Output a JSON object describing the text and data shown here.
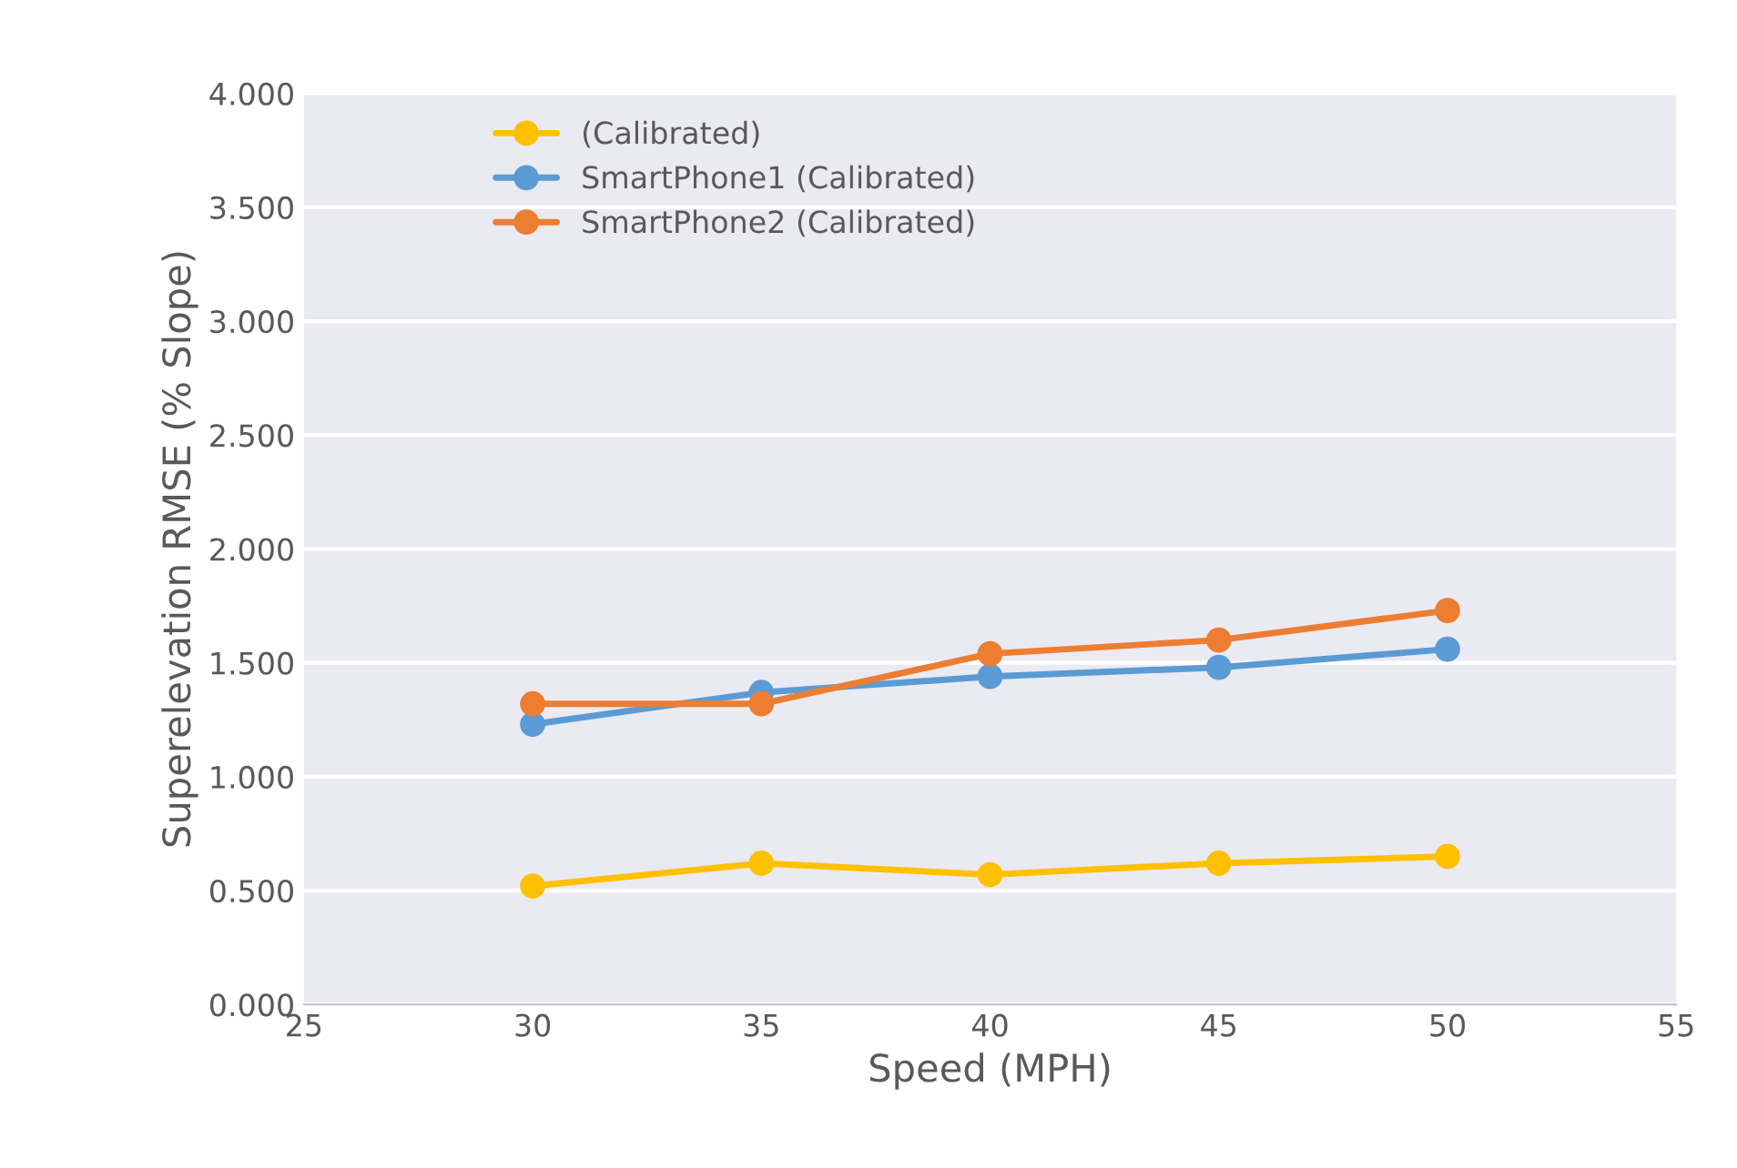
{
  "chart_data": {
    "type": "line",
    "xlabel": "Speed (MPH)",
    "ylabel": "Superelevation RMSE (% Slope)",
    "x": [
      30,
      35,
      40,
      45,
      50
    ],
    "series": [
      {
        "name": "(Calibrated)",
        "color": "#ffc000",
        "values": [
          0.52,
          0.62,
          0.57,
          0.62,
          0.65
        ]
      },
      {
        "name": "SmartPhone1 (Calibrated)",
        "color": "#5b9bd5",
        "values": [
          1.23,
          1.37,
          1.44,
          1.48,
          1.56
        ]
      },
      {
        "name": "SmartPhone2 (Calibrated)",
        "color": "#ed7d31",
        "values": [
          1.32,
          1.32,
          1.54,
          1.6,
          1.73
        ]
      }
    ],
    "xlim": [
      25,
      55
    ],
    "xticks": [
      25,
      30,
      35,
      40,
      45,
      50,
      55
    ],
    "ylim": [
      0,
      4
    ],
    "yticks": [
      {
        "value": 0,
        "label": "0.000"
      },
      {
        "value": 0.5,
        "label": "0.500"
      },
      {
        "value": 1,
        "label": "1.000"
      },
      {
        "value": 1.5,
        "label": "1.500"
      },
      {
        "value": 2,
        "label": "2.000"
      },
      {
        "value": 2.5,
        "label": "2.500"
      },
      {
        "value": 3,
        "label": "3.000"
      },
      {
        "value": 3.5,
        "label": "3.500"
      },
      {
        "value": 4,
        "label": "4.000"
      }
    ],
    "grid": "y",
    "legend": "top left",
    "marker": "circle",
    "line_style": "solid"
  }
}
